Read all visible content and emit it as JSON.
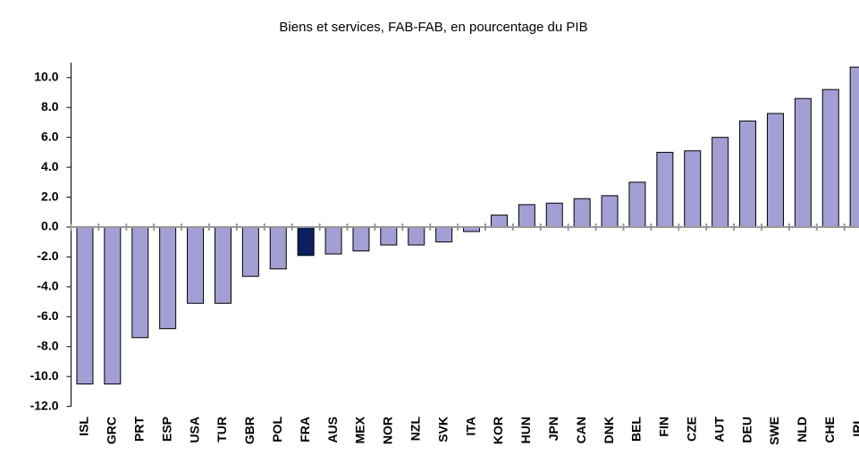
{
  "chart_data": {
    "type": "bar",
    "title": "Biens et services, FAB-FAB, en pourcentage du PIB",
    "categories": [
      "ISL",
      "GRC",
      "PRT",
      "ESP",
      "USA",
      "TUR",
      "GBR",
      "POL",
      "FRA",
      "AUS",
      "MEX",
      "NOR",
      "NZL",
      "SVK",
      "ITA",
      "KOR",
      "HUN",
      "JPN",
      "CAN",
      "DNK",
      "BEL",
      "FIN",
      "CZE",
      "AUT",
      "DEU",
      "SWE",
      "NLD",
      "CHE",
      "IRL"
    ],
    "values": [
      -10.5,
      -10.5,
      -7.4,
      -6.8,
      -5.1,
      -5.1,
      -3.3,
      -2.8,
      -1.9,
      -1.8,
      -1.6,
      -1.2,
      -1.2,
      -1.0,
      -0.3,
      0.8,
      1.5,
      1.6,
      1.9,
      2.1,
      3.0,
      5.0,
      5.1,
      6.0,
      7.1,
      7.6,
      8.6,
      9.2,
      10.7
    ],
    "colors": [
      "#a29fd4",
      "#a29fd4",
      "#a29fd4",
      "#a29fd4",
      "#a29fd4",
      "#a29fd4",
      "#a29fd4",
      "#a29fd4",
      "#0c1f5e",
      "#a29fd4",
      "#a29fd4",
      "#a29fd4",
      "#a29fd4",
      "#a29fd4",
      "#a29fd4",
      "#a29fd4",
      "#a29fd4",
      "#a29fd4",
      "#a29fd4",
      "#a29fd4",
      "#a29fd4",
      "#a29fd4",
      "#a29fd4",
      "#a29fd4",
      "#a29fd4",
      "#a29fd4",
      "#a29fd4",
      "#a29fd4",
      "#a29fd4"
    ],
    "ylim": [
      -12,
      11
    ],
    "yticks": [
      {
        "value": -12,
        "label": "-12.0"
      },
      {
        "value": -10,
        "label": "-10.0"
      },
      {
        "value": -8,
        "label": "-8.0"
      },
      {
        "value": -6,
        "label": "-6.0"
      },
      {
        "value": -4,
        "label": "-4.0"
      },
      {
        "value": -2,
        "label": "-2.0"
      },
      {
        "value": 0,
        "label": "0.0"
      },
      {
        "value": 2,
        "label": "2.0"
      },
      {
        "value": 4,
        "label": "4.0"
      },
      {
        "value": 6,
        "label": "6.0"
      },
      {
        "value": 8,
        "label": "8.0"
      },
      {
        "value": 10,
        "label": "10.0"
      }
    ],
    "grid": false
  }
}
